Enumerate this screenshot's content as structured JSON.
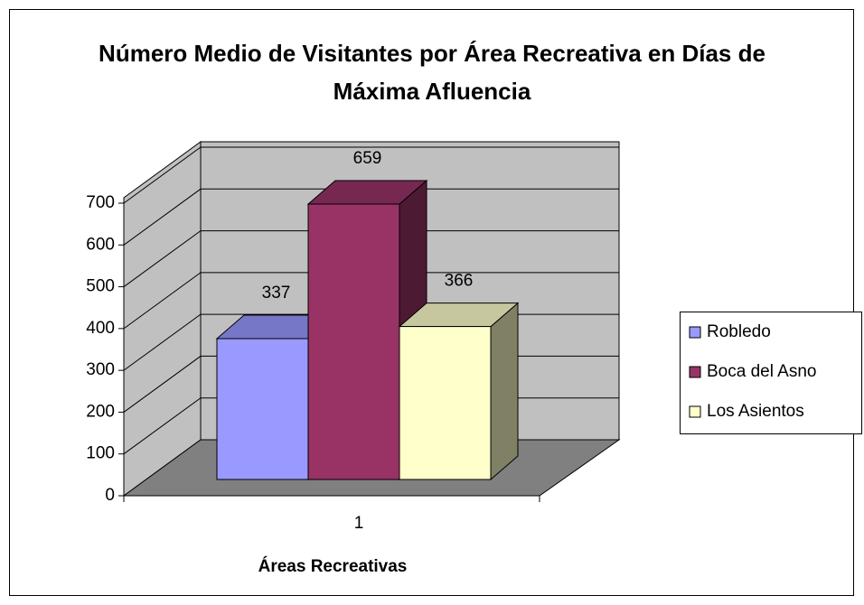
{
  "chart_data": {
    "type": "bar3d",
    "title": "Número Medio de Visitantes por Área Recreativa en Días de Máxima Afluencia",
    "xlabel": "Áreas Recreativas",
    "categories": [
      "1"
    ],
    "series": [
      {
        "name": "Robledo",
        "color": "#9999ff",
        "values": [
          337
        ]
      },
      {
        "name": "Boca del Asno",
        "color": "#993366",
        "values": [
          659
        ]
      },
      {
        "name": "Los Asientos",
        "color": "#ffffcc",
        "values": [
          366
        ]
      }
    ],
    "ylim": [
      0,
      700
    ],
    "yticks": [
      0,
      100,
      200,
      300,
      400,
      500,
      600,
      700
    ],
    "grid": true,
    "legend": "right"
  }
}
